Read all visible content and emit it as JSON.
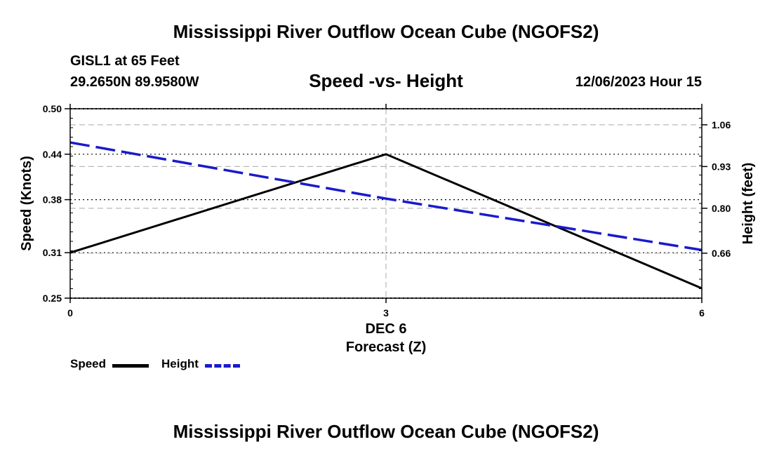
{
  "header": {
    "title": "Mississippi River Outflow Ocean Cube (NGOFS2)",
    "station": "GISL1 at 65 Feet",
    "coords": "29.2650N  89.9580W",
    "datetime": "12/06/2023 Hour 15"
  },
  "footer": {
    "title": "Mississippi River Outflow Ocean Cube (NGOFS2)"
  },
  "colors": {
    "speed": "#000000",
    "height": "#1a1acc",
    "grid": "#b8b8b8"
  },
  "chart_data": {
    "type": "line",
    "title": "Speed -vs- Height",
    "xlabel": "Forecast (Z)",
    "xsublabel": "DEC 6",
    "ylabel_left": "Speed (Knots)",
    "ylabel_right": "Height (feet)",
    "x": [
      0,
      3,
      6
    ],
    "x_ticks": [
      "0",
      "3",
      "6"
    ],
    "xlim": [
      0,
      6
    ],
    "ylim_left": [
      0.25,
      0.5
    ],
    "ylim_right": [
      0.52,
      1.11
    ],
    "y_ticks_left": [
      "0.25",
      "0.31",
      "0.38",
      "0.44",
      "0.50"
    ],
    "y_ticks_right": [
      "0.66",
      "0.80",
      "0.93",
      "1.06"
    ],
    "series": [
      {
        "name": "Speed",
        "axis": "left",
        "style": "solid",
        "values": [
          0.31,
          0.44,
          0.263
        ]
      },
      {
        "name": "Height",
        "axis": "right",
        "style": "dashed",
        "values": [
          1.005,
          0.83,
          0.67
        ]
      }
    ],
    "legend": [
      "Speed",
      "Height"
    ],
    "grid": true
  }
}
